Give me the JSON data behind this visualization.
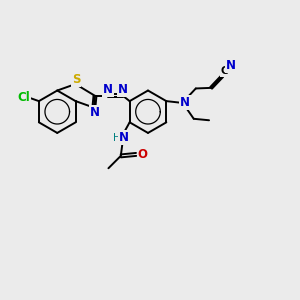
{
  "background_color": "#ebebeb",
  "bond_color": "#000000",
  "atom_colors": {
    "C": "#000000",
    "N": "#0000cc",
    "O": "#cc0000",
    "S": "#ccaa00",
    "Cl": "#00bb00",
    "H": "#008080"
  },
  "figsize": [
    3.0,
    3.0
  ],
  "dpi": 100
}
